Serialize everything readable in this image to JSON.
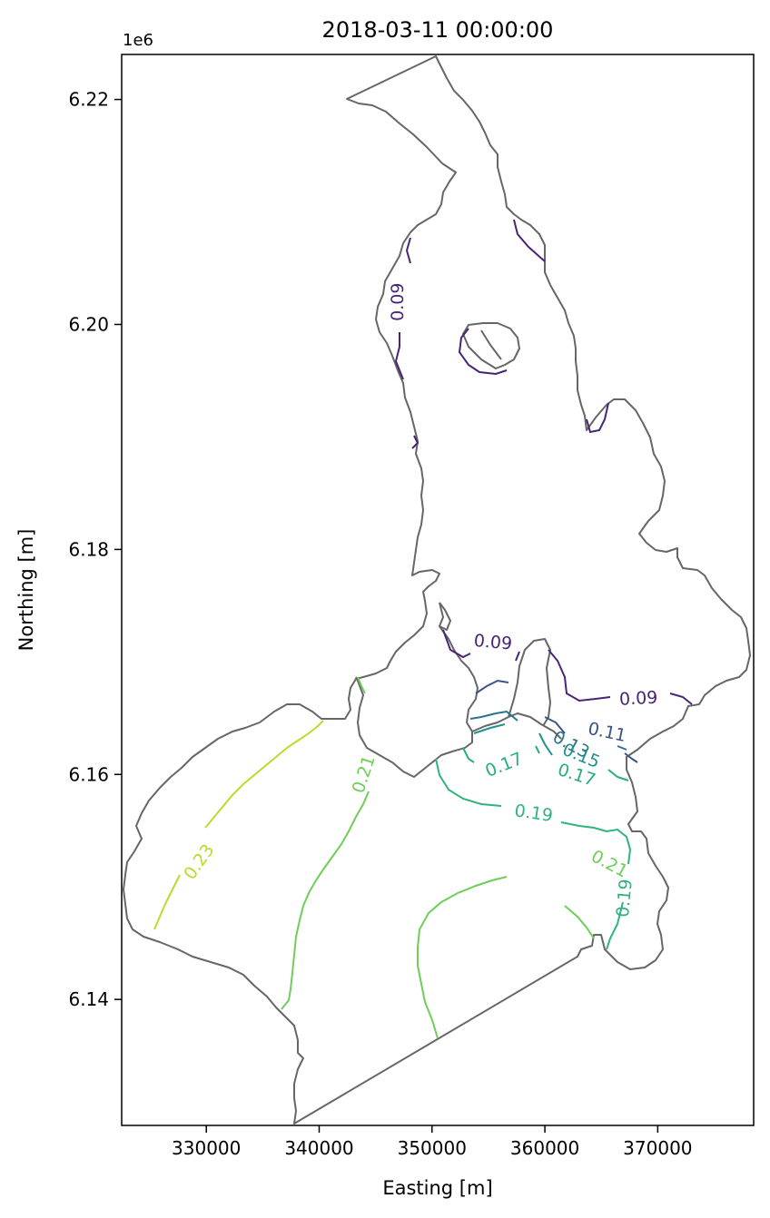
{
  "chart_data": {
    "type": "contour",
    "title": "2018-03-11 00:00:00",
    "xlabel": "Easting [m]",
    "ylabel": "Northing [m]",
    "y_offset_label": "1e6",
    "xlim": [
      322500,
      378500
    ],
    "ylim": [
      6128800,
      6224000
    ],
    "x_ticks": [
      330000,
      340000,
      350000,
      360000,
      370000
    ],
    "x_tick_labels": [
      "330000",
      "340000",
      "350000",
      "360000",
      "370000"
    ],
    "y_ticks": [
      6140000,
      6160000,
      6180000,
      6200000,
      6220000
    ],
    "y_tick_labels": [
      "6.14",
      "6.16",
      "6.18",
      "6.20",
      "6.22"
    ],
    "grid": false,
    "colors": {
      "0.09": "#482475",
      "0.11": "#3b528b",
      "0.13": "#2c728e",
      "0.15": "#21918c",
      "0.17": "#27ad81",
      "0.19": "#2fb47c",
      "0.21": "#6ece58",
      "0.23": "#b5de2b",
      "outline": "#666666"
    },
    "contour_labels": [
      {
        "text": "0.09",
        "x": 347000,
        "y": 6202000,
        "level": "0.09",
        "rotate": -90
      },
      {
        "text": "0.09",
        "x": 355400,
        "y": 6171700,
        "level": "0.09",
        "rotate": 5
      },
      {
        "text": "0.09",
        "x": 368300,
        "y": 6166700,
        "level": "0.09",
        "rotate": -3
      },
      {
        "text": "0.11",
        "x": 365500,
        "y": 6163700,
        "level": "0.11",
        "rotate": 12
      },
      {
        "text": "0.13",
        "x": 362300,
        "y": 6162600,
        "level": "0.13",
        "rotate": 28
      },
      {
        "text": "0.15",
        "x": 363200,
        "y": 6161600,
        "level": "0.15",
        "rotate": 22
      },
      {
        "text": "0.17",
        "x": 356400,
        "y": 6160800,
        "level": "0.17",
        "rotate": -22
      },
      {
        "text": "0.17",
        "x": 362800,
        "y": 6159900,
        "level": "0.17",
        "rotate": 18
      },
      {
        "text": "0.19",
        "x": 359000,
        "y": 6156500,
        "level": "0.19",
        "rotate": 8
      },
      {
        "text": "0.19",
        "x": 367100,
        "y": 6149000,
        "level": "0.19",
        "rotate": -85
      },
      {
        "text": "0.21",
        "x": 365700,
        "y": 6152000,
        "level": "0.21",
        "rotate": 28
      },
      {
        "text": "0.21",
        "x": 344000,
        "y": 6160000,
        "level": "0.21",
        "rotate": -72
      },
      {
        "text": "0.23",
        "x": 329400,
        "y": 6152200,
        "level": "0.23",
        "rotate": -55
      }
    ]
  }
}
